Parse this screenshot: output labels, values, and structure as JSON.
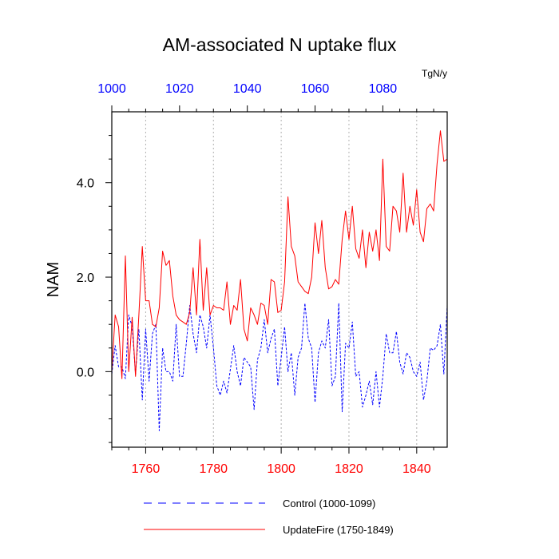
{
  "chart_data": {
    "type": "line",
    "title": "AM-associated N uptake flux",
    "ylabel": "NAM",
    "units": "TgN/y",
    "x_bottom": {
      "range": [
        1750,
        1849
      ],
      "ticks": [
        1760,
        1780,
        1800,
        1820,
        1840
      ],
      "tick_labels": [
        "1760",
        "1780",
        "1800",
        "1820",
        "1840"
      ],
      "color": "#ff0000"
    },
    "x_top": {
      "range": [
        1000,
        1099
      ],
      "ticks": [
        1000,
        1020,
        1040,
        1060,
        1080
      ],
      "tick_labels": [
        "1000",
        "1020",
        "1040",
        "1060",
        "1080"
      ],
      "color": "#0000ff"
    },
    "y": {
      "range": [
        -1.6,
        5.5
      ],
      "ticks": [
        0.0,
        2.0,
        4.0
      ],
      "tick_labels": [
        "0.0",
        "2.0",
        "4.0"
      ]
    },
    "grid": "vertical dotted at labeled x ticks",
    "series": [
      {
        "name": "Control (1000-1099)",
        "axis": "top",
        "color": "#0000ff",
        "dash": "dashed",
        "x_start": 1000,
        "values": [
          -0.05,
          0.55,
          0.1,
          0.1,
          -0.15,
          1.2,
          0.95,
          -0.05,
          0.9,
          -0.6,
          0.9,
          -0.2,
          0.8,
          1.0,
          -1.25,
          0.5,
          0.0,
          0.0,
          -0.2,
          1.0,
          -0.1,
          -0.1,
          0.6,
          1.4,
          0.8,
          0.4,
          1.2,
          0.95,
          0.5,
          1.2,
          0.5,
          -0.3,
          -0.5,
          -0.2,
          -0.45,
          0.05,
          0.55,
          0.0,
          -0.3,
          0.3,
          0.2,
          0.1,
          -0.8,
          0.25,
          0.5,
          1.1,
          0.4,
          0.7,
          0.9,
          -0.3,
          0.3,
          0.95,
          0.0,
          0.4,
          -0.5,
          0.3,
          0.5,
          1.45,
          0.7,
          0.5,
          -0.65,
          0.4,
          0.65,
          0.5,
          1.1,
          -0.3,
          -0.1,
          1.45,
          -0.85,
          0.6,
          0.5,
          1.05,
          -0.1,
          0.0,
          -0.75,
          -0.5,
          -0.2,
          -0.7,
          0.0,
          -0.75,
          -0.1,
          0.8,
          0.4,
          0.4,
          0.85,
          0.2,
          -0.05,
          0.4,
          0.3,
          0.0,
          -0.1,
          0.2,
          -0.6,
          -0.2,
          0.5,
          0.45,
          0.55,
          1.0,
          -0.05,
          1.4
        ]
      },
      {
        "name": "UpdateFire (1750-1849)",
        "axis": "bottom",
        "color": "#ff0000",
        "dash": "solid",
        "x_start": 1750,
        "values": [
          0.0,
          1.2,
          0.95,
          -0.15,
          2.45,
          0.0,
          1.15,
          -0.1,
          1.2,
          2.65,
          1.5,
          1.5,
          1.0,
          0.95,
          1.35,
          2.55,
          2.25,
          2.35,
          1.6,
          1.2,
          1.1,
          1.05,
          1.0,
          1.25,
          2.2,
          1.2,
          2.8,
          1.3,
          2.2,
          1.2,
          1.4,
          1.35,
          1.35,
          1.3,
          1.9,
          1.0,
          1.4,
          1.3,
          1.95,
          0.9,
          0.65,
          1.35,
          1.2,
          1.0,
          1.45,
          1.4,
          1.0,
          1.95,
          1.9,
          1.25,
          1.3,
          1.9,
          3.7,
          2.65,
          2.45,
          1.9,
          1.8,
          1.7,
          1.65,
          2.0,
          3.15,
          2.5,
          3.2,
          2.2,
          1.75,
          1.8,
          1.95,
          1.85,
          2.8,
          3.4,
          2.8,
          3.5,
          2.6,
          2.4,
          3.0,
          2.2,
          2.95,
          2.55,
          3.0,
          2.35,
          4.5,
          2.65,
          2.55,
          3.5,
          3.4,
          2.95,
          4.2,
          2.95,
          3.5,
          3.1,
          3.85,
          2.95,
          2.75,
          3.45,
          3.55,
          3.4,
          4.4,
          5.1,
          4.45,
          4.5
        ]
      }
    ],
    "legend": {
      "placement": "bottom",
      "entries": [
        "Control (1000-1099)",
        "UpdateFire (1750-1849)"
      ]
    }
  }
}
